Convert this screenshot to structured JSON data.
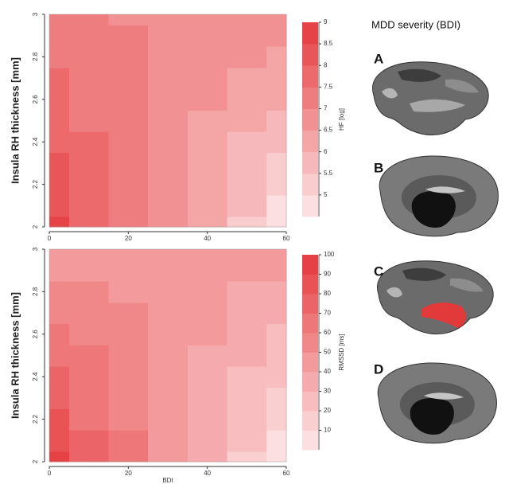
{
  "chart_data": [
    {
      "type": "contour",
      "ylabel": "Insula RH thickness [mm]",
      "x": [
        0,
        10,
        20,
        30,
        40,
        50,
        60
      ],
      "y": [
        2,
        2.1,
        2.2,
        2.3,
        2.4,
        2.5,
        2.6,
        2.7,
        2.8,
        2.9,
        3
      ],
      "z": [
        [
          8.5,
          7.9,
          7.2,
          6.6,
          6.0,
          5.3,
          4.7
        ],
        [
          8.4,
          7.8,
          7.2,
          6.6,
          6.1,
          5.5,
          4.9
        ],
        [
          8.2,
          7.7,
          7.2,
          6.7,
          6.2,
          5.6,
          5.1
        ],
        [
          8.1,
          7.6,
          7.1,
          6.7,
          6.2,
          5.8,
          5.3
        ],
        [
          7.9,
          7.5,
          7.1,
          6.7,
          6.3,
          5.9,
          5.5
        ],
        [
          7.8,
          7.4,
          7.1,
          6.8,
          6.4,
          6.1,
          5.8
        ],
        [
          7.6,
          7.3,
          7.1,
          6.8,
          6.5,
          6.2,
          6.0
        ],
        [
          7.5,
          7.2,
          7.0,
          6.8,
          6.6,
          6.4,
          6.2
        ],
        [
          7.3,
          7.2,
          7.0,
          6.8,
          6.7,
          6.5,
          6.4
        ],
        [
          7.2,
          7.1,
          7.0,
          6.9,
          6.8,
          6.7,
          6.6
        ],
        [
          7.0,
          7.0,
          6.9,
          6.9,
          6.9,
          6.8,
          6.8
        ]
      ],
      "xlim": [
        0,
        60
      ],
      "xticks": [
        0,
        20,
        40,
        60
      ],
      "ylim": [
        2,
        3
      ],
      "yticks": [
        2,
        2.2,
        2.4,
        2.6,
        2.8,
        3
      ],
      "colorbar": {
        "label": "HF [log]",
        "lim": [
          4.5,
          9
        ],
        "ticks": [
          5,
          5.5,
          6,
          6.5,
          7,
          7.5,
          8,
          8.5,
          9
        ],
        "colors": [
          "#fde9ea",
          "#e5393c"
        ]
      }
    },
    {
      "type": "contour",
      "ylabel": "Insula RH thickness [mm]",
      "xlabel": "BDI",
      "x": [
        0,
        10,
        20,
        30,
        40,
        50,
        60
      ],
      "y": [
        2,
        2.1,
        2.2,
        2.3,
        2.4,
        2.5,
        2.6,
        2.7,
        2.8,
        2.9,
        3
      ],
      "z": [
        [
          90,
          75.8,
          61.7,
          47.5,
          33.3,
          19.2,
          5
        ],
        [
          85.5,
          72.8,
          60,
          47.3,
          34.5,
          21.8,
          9
        ],
        [
          81,
          69.7,
          58.3,
          47,
          35.7,
          24.3,
          13
        ],
        [
          76.5,
          66.6,
          56.7,
          46.8,
          36.8,
          26.9,
          17
        ],
        [
          72,
          63.5,
          55,
          46.5,
          38,
          29.5,
          21
        ],
        [
          67.5,
          60.4,
          53.3,
          46.3,
          39.2,
          32.1,
          25
        ],
        [
          63,
          57.3,
          51.7,
          46,
          40.3,
          34.7,
          29
        ],
        [
          58.5,
          54.3,
          50,
          45.8,
          41.5,
          37.3,
          33
        ],
        [
          54,
          51.2,
          48.3,
          45.5,
          42.7,
          39.8,
          37
        ],
        [
          49.5,
          48.1,
          46.7,
          45.3,
          43.8,
          42.4,
          41
        ],
        [
          45,
          45,
          45,
          45,
          45,
          45,
          45
        ]
      ],
      "xlim": [
        0,
        60
      ],
      "xticks": [
        0,
        20,
        40,
        60
      ],
      "ylim": [
        2,
        3
      ],
      "yticks": [
        2,
        2.2,
        2.4,
        2.6,
        2.8,
        3
      ],
      "colorbar": {
        "label": "RMSSD [ms]",
        "lim": [
          0,
          100
        ],
        "ticks": [
          10,
          20,
          30,
          40,
          50,
          60,
          70,
          80,
          90,
          100
        ],
        "colors": [
          "#fde9ea",
          "#e5393c"
        ]
      }
    }
  ],
  "panels": {
    "title": "MDD severity (BDI)",
    "labels": [
      "A",
      "B",
      "C",
      "D"
    ]
  }
}
